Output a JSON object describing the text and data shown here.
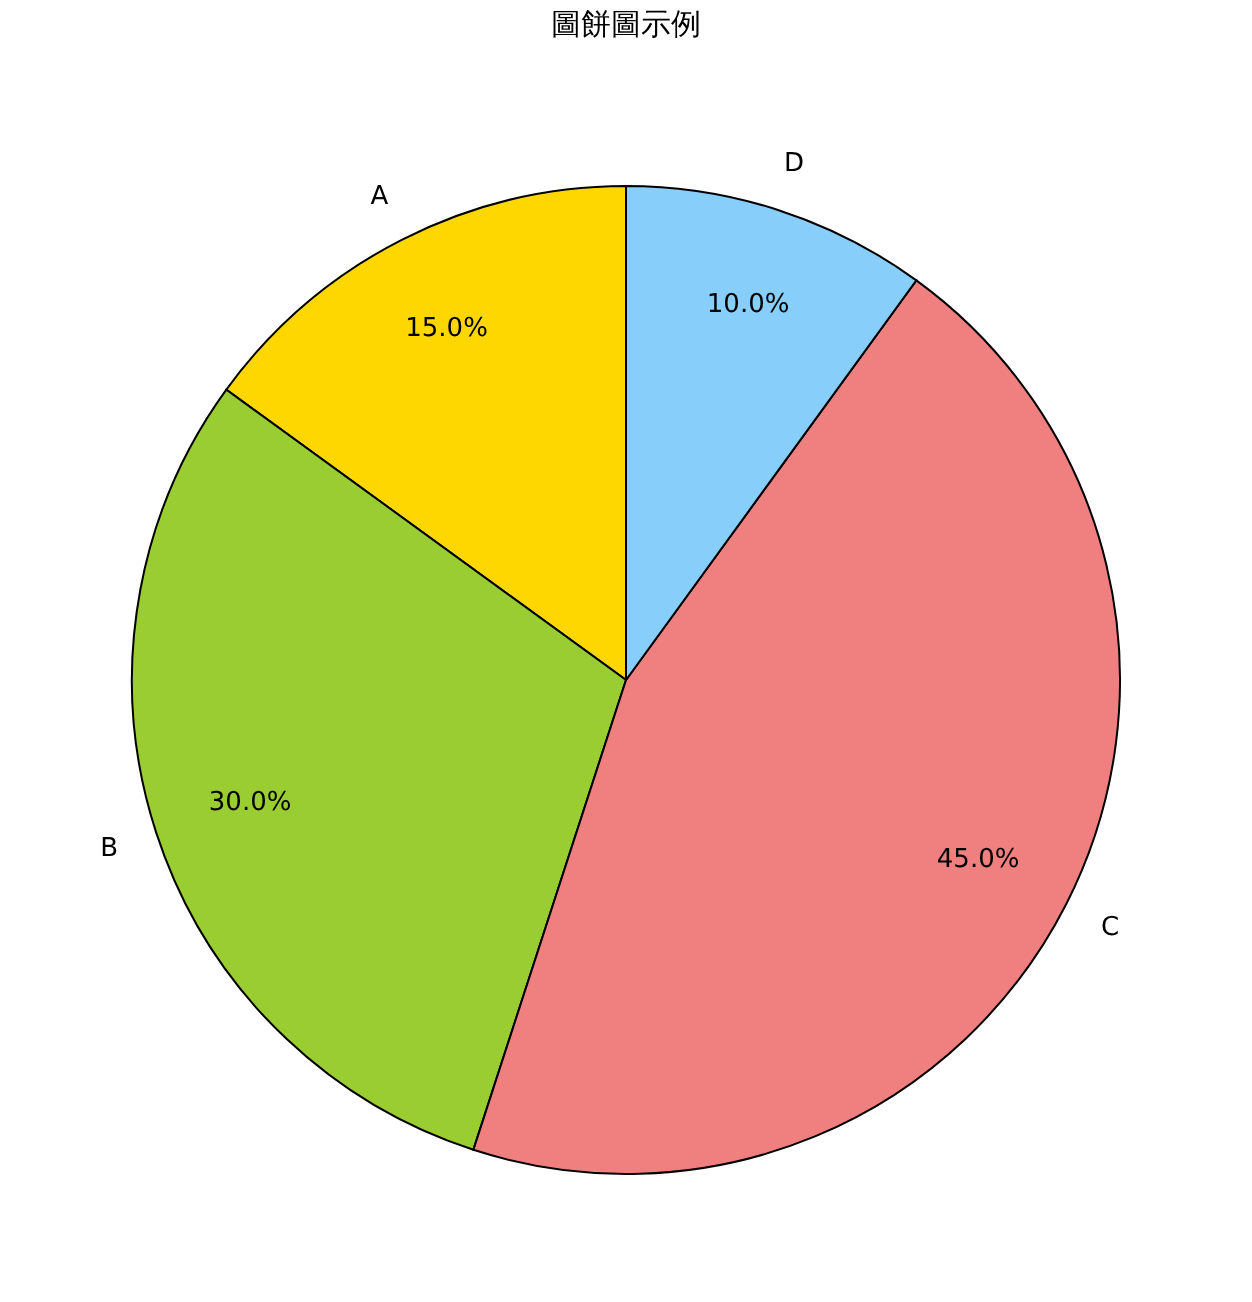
{
  "chart_data": {
    "type": "pie",
    "title": "圖餅圖示例",
    "categories": [
      "A",
      "B",
      "C",
      "D"
    ],
    "values": [
      15,
      30,
      45,
      10
    ],
    "colors": [
      "#ffd700",
      "#9acd32",
      "#f08080",
      "#87cefa"
    ],
    "value_labels": [
      "15.0%",
      "30.0%",
      "45.0%",
      "10.0%"
    ]
  }
}
